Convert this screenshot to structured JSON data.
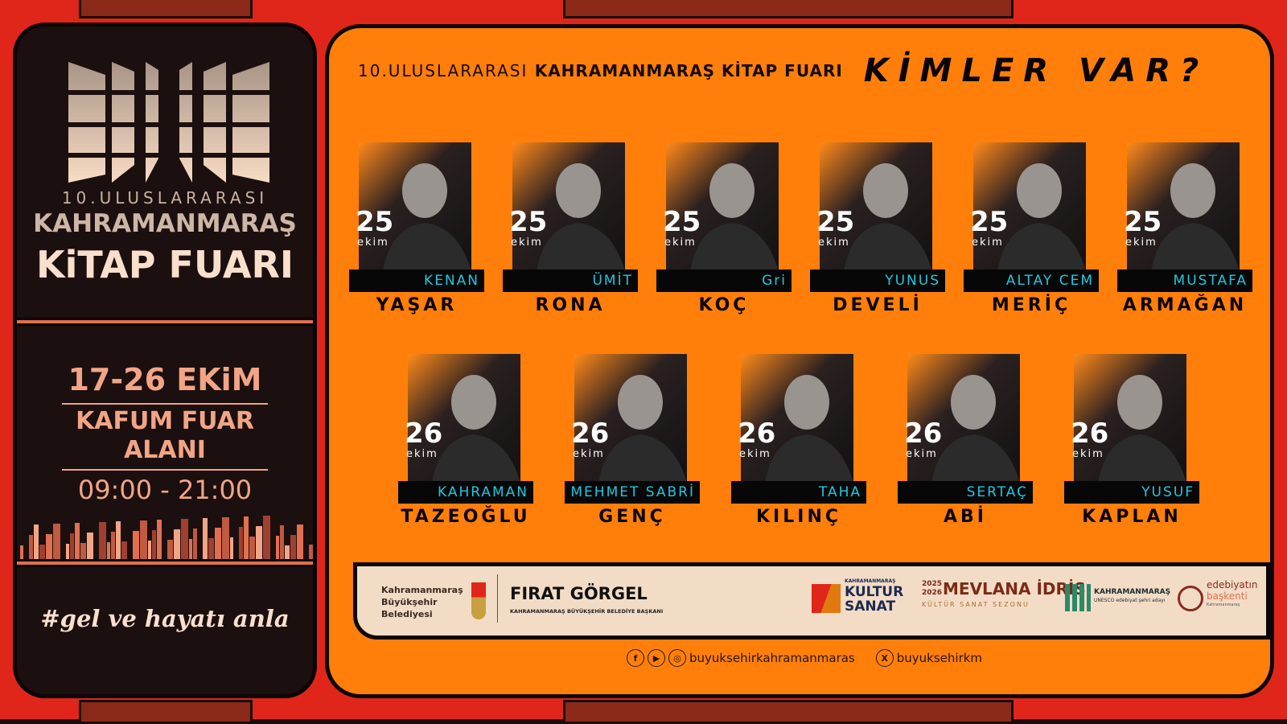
{
  "left": {
    "logo_sub": "10.ULUSLARARASI",
    "logo_city": "KAHRAMANMARAŞ",
    "logo_title": "KiTAP FUARI",
    "dates": "17-26  EKiM",
    "venue1": "KAFUM FUAR",
    "venue2": "ALANI",
    "hours": "09:00 - 21:00",
    "hashtag": "#gel ve hayatı anla"
  },
  "header": {
    "pre": "10.ULUSLARARASI",
    "bold": "KAHRAMANMARAŞ KİTAP FUARI",
    "kimler": "KİMLER VAR?"
  },
  "speakers_row1": [
    {
      "day": "25",
      "month": "ekim",
      "first": "KENAN",
      "last": "YAŞAR"
    },
    {
      "day": "25",
      "month": "ekim",
      "first": "ÜMİT",
      "last": "RONA"
    },
    {
      "day": "25",
      "month": "ekim",
      "first": "Gri",
      "last": "KOÇ"
    },
    {
      "day": "25",
      "month": "ekim",
      "first": "YUNUS",
      "last": "DEVELİ"
    },
    {
      "day": "25",
      "month": "ekim",
      "first": "ALTAY CEM",
      "last": "MERİÇ"
    },
    {
      "day": "25",
      "month": "ekim",
      "first": "MUSTAFA",
      "last": "ARMAĞAN"
    }
  ],
  "speakers_row2": [
    {
      "day": "26",
      "month": "ekim",
      "first": "KAHRAMAN",
      "last": "TAZEOĞLU"
    },
    {
      "day": "26",
      "month": "ekim",
      "first": "MEHMET SABRİ",
      "last": "GENÇ"
    },
    {
      "day": "26",
      "month": "ekim",
      "first": "TAHA",
      "last": "KILINÇ"
    },
    {
      "day": "26",
      "month": "ekim",
      "first": "SERTAÇ",
      "last": "ABİ"
    },
    {
      "day": "26",
      "month": "ekim",
      "first": "YUSUF",
      "last": "KAPLAN"
    }
  ],
  "footer": {
    "municipality1": "Kahramanmaraş",
    "municipality2": "Büyükşehir Belediyesi",
    "mayor": "FIRAT GÖRGEL",
    "mayor_title": "KAHRAMANMARAŞ BÜYÜKŞEHİR BELEDİYE BAŞKANI",
    "ks_small": "KAHRAMANMARAŞ",
    "ks1": "KULTUR",
    "ks2": "SANAT",
    "mev_years": "2025 2026",
    "mev": "MEVLANA İDRİS",
    "mev_sub": "KÜLTÜR SANAT SEZONU",
    "unesco1": "KAHRAMANMARAŞ",
    "unesco2": "UNESCO edebiyat şehri adayı",
    "edeb1": "edebiyatın",
    "edeb2": "başkenti",
    "edeb3": "Kahramanmaraş"
  },
  "social": {
    "handle1": "buyuksehirkahramanmaras",
    "handle2": "buyuksehirkm"
  },
  "colors": {
    "orange": "#ff7f0a",
    "dark": "#1c0f0f",
    "red": "#e0261a",
    "cyan": "#1ec8e0",
    "peach": "#f2a585"
  }
}
